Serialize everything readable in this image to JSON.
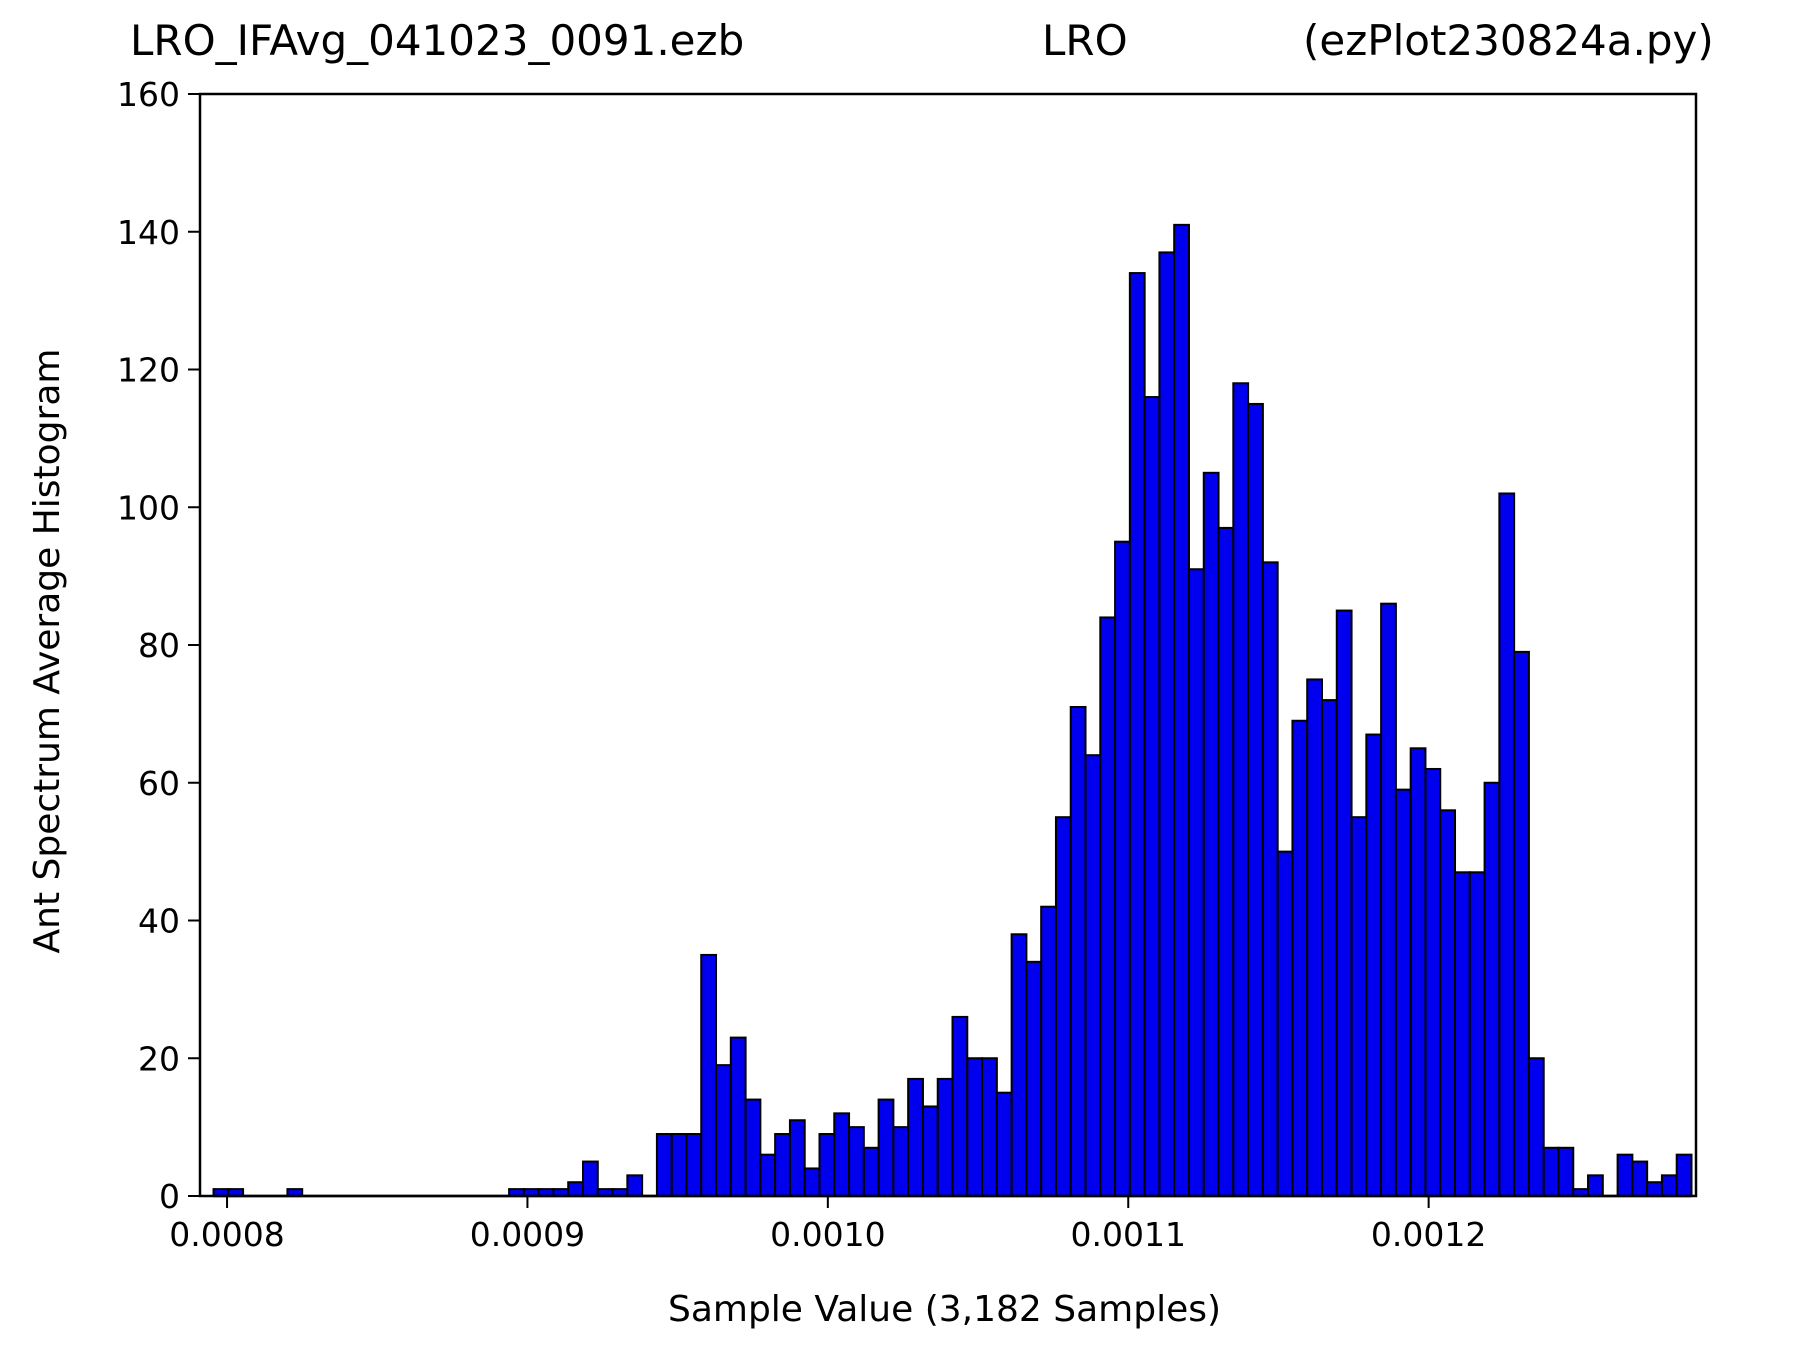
{
  "figure": {
    "title_left": "LRO_IFAvg_041023_0091.ezb",
    "title_center": "LRO",
    "title_right": "(ezPlot230824a.py)"
  },
  "chart_data": {
    "type": "bar",
    "xlabel": "Sample Value (3,182 Samples)",
    "ylabel": "Ant Spectrum Average Histogram",
    "xlim": [
      0.000791,
      0.001289
    ],
    "ylim": [
      0,
      160
    ],
    "xticks": [
      0.0008,
      0.0009,
      0.001,
      0.0011,
      0.0012
    ],
    "xtick_labels": [
      "0.0008",
      "0.0009",
      "0.0010",
      "0.0011",
      "0.0012"
    ],
    "yticks": [
      0,
      20,
      40,
      60,
      80,
      100,
      120,
      140,
      160
    ],
    "ytick_labels": [
      "0",
      "20",
      "40",
      "60",
      "80",
      "100",
      "120",
      "140",
      "160"
    ],
    "bin_start": 0.0007955,
    "bin_end": 0.0012875,
    "bar_color": "#0000ee",
    "edge_color": "#000000",
    "grid": false,
    "values": [
      1,
      1,
      0,
      0,
      0,
      1,
      0,
      0,
      0,
      0,
      0,
      0,
      0,
      0,
      0,
      0,
      0,
      0,
      0,
      0,
      1,
      1,
      1,
      1,
      2,
      5,
      1,
      1,
      3,
      0,
      9,
      9,
      9,
      35,
      19,
      23,
      14,
      6,
      9,
      11,
      4,
      9,
      12,
      10,
      7,
      14,
      10,
      17,
      13,
      17,
      26,
      20,
      20,
      15,
      38,
      34,
      42,
      55,
      71,
      64,
      84,
      95,
      134,
      116,
      137,
      141,
      91,
      105,
      97,
      118,
      115,
      92,
      50,
      69,
      75,
      72,
      85,
      55,
      67,
      86,
      59,
      65,
      62,
      56,
      47,
      47,
      60,
      102,
      79,
      20,
      7,
      7,
      1,
      3,
      0,
      6,
      5,
      2,
      3,
      6
    ]
  }
}
